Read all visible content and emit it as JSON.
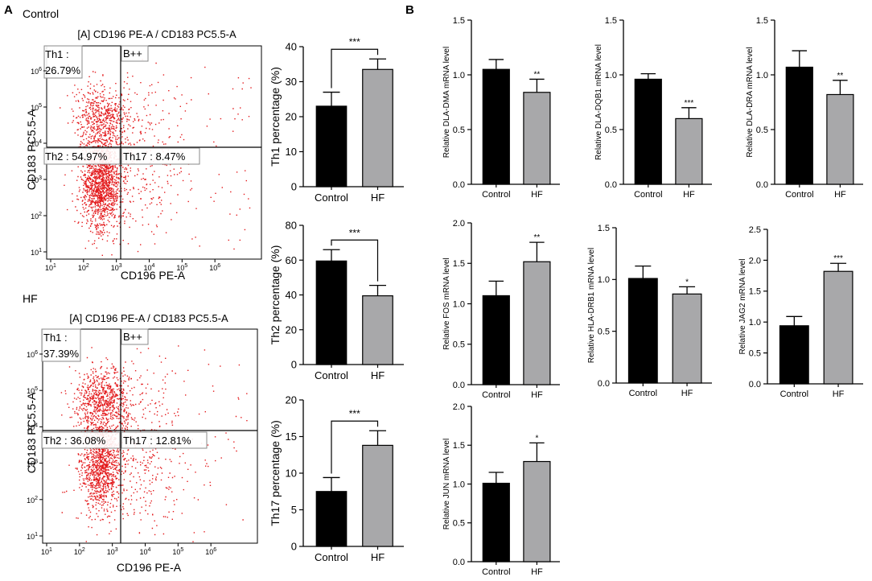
{
  "panels": {
    "a_label": "A",
    "b_label": "B"
  },
  "flow": [
    {
      "group": "Control",
      "gate_title": "[A] CD196 PE-A / CD183 PC5.5-A",
      "y_label": "CD183 PC5.5-A",
      "x_label": "CD196 PE-A",
      "q_th1_name": "Th1 :",
      "q_th1_value": "26.79%",
      "q_bpp": "B++",
      "q_th2": "Th2 : 54.97%",
      "q_th17": "Th17 : 8.47%",
      "axis_ticks": {
        "exponents": [
          "1",
          "2",
          "3",
          "4",
          "5",
          "6"
        ],
        "base": "10"
      }
    },
    {
      "group": "HF",
      "gate_title": "[A] CD196 PE-A / CD183 PC5.5-A",
      "y_label": "CD183 PC5.5-A",
      "x_label": "CD196 PE-A",
      "q_th1_name": "Th1 :",
      "q_th1_value": "37.39%",
      "q_bpp": "B++",
      "q_th2": "Th2 : 36.08%",
      "q_th17": "Th17 : 12.81%",
      "axis_ticks": {
        "exponents": [
          "1",
          "2",
          "3",
          "4",
          "5",
          "6"
        ],
        "base": "10"
      }
    }
  ],
  "colors": {
    "control_bar": "#000000",
    "hf_bar": "#a8a8aa",
    "dots": "#e31a1c",
    "axis": "#000000"
  },
  "chart_data": [
    {
      "id": "th1",
      "type": "bar",
      "categories": [
        "Control",
        "HF"
      ],
      "values": [
        23,
        33.5
      ],
      "errors": [
        4,
        3
      ],
      "ylabel": "Th1 percentage (%)",
      "ylim": [
        0,
        40
      ],
      "yticks": [
        0,
        10,
        20,
        30,
        40
      ],
      "tick_labels": [
        "0",
        "10",
        "20",
        "30",
        "40"
      ],
      "significance": [
        "",
        ""
      ],
      "bracket": "***"
    },
    {
      "id": "th2",
      "type": "bar",
      "categories": [
        "Control",
        "HF"
      ],
      "values": [
        59.5,
        39.5
      ],
      "errors": [
        6.5,
        6
      ],
      "ylabel": "Th2 percentage (%)",
      "ylim": [
        0,
        80
      ],
      "yticks": [
        0,
        20,
        40,
        60,
        80
      ],
      "tick_labels": [
        "0",
        "20",
        "40",
        "60",
        "80"
      ],
      "significance": [
        "",
        ""
      ],
      "bracket": "***"
    },
    {
      "id": "th17",
      "type": "bar",
      "categories": [
        "Control",
        "HF"
      ],
      "values": [
        7.5,
        13.8
      ],
      "errors": [
        1.9,
        2
      ],
      "ylabel": "Th17 percentage (%)",
      "ylim": [
        0,
        20
      ],
      "yticks": [
        0,
        5,
        10,
        15,
        20
      ],
      "tick_labels": [
        "0",
        "5",
        "10",
        "15",
        "20"
      ],
      "significance": [
        "",
        ""
      ],
      "bracket": "***"
    },
    {
      "id": "dma",
      "type": "bar",
      "categories": [
        "Control",
        "HF"
      ],
      "values": [
        1.05,
        0.84
      ],
      "errors": [
        0.09,
        0.12
      ],
      "ylabel": "Relative DLA-DMA mRNA level",
      "ylim": [
        0,
        1.5
      ],
      "yticks": [
        0,
        0.5,
        1,
        1.5
      ],
      "tick_labels": [
        "0.0",
        "0.5",
        "1.0",
        "1.5"
      ],
      "significance": [
        "",
        "**"
      ],
      "bracket": ""
    },
    {
      "id": "dqb1",
      "type": "bar",
      "categories": [
        "Control",
        "HF"
      ],
      "values": [
        0.96,
        0.6
      ],
      "errors": [
        0.05,
        0.1
      ],
      "ylabel": "Relative DLA-DQB1 mRNA level",
      "ylim": [
        0,
        1.5
      ],
      "yticks": [
        0,
        0.5,
        1,
        1.5
      ],
      "tick_labels": [
        "0.0",
        "0.5",
        "1.0",
        "1.5"
      ],
      "significance": [
        "",
        "***"
      ],
      "bracket": ""
    },
    {
      "id": "dra",
      "type": "bar",
      "categories": [
        "Control",
        "HF"
      ],
      "values": [
        1.07,
        0.82
      ],
      "errors": [
        0.15,
        0.13
      ],
      "ylabel": "Relative DLA-DRA mRNA level",
      "ylim": [
        0,
        1.5
      ],
      "yticks": [
        0,
        0.5,
        1,
        1.5
      ],
      "tick_labels": [
        "0.0",
        "0.5",
        "1.0",
        "1.5"
      ],
      "significance": [
        "",
        "**"
      ],
      "bracket": ""
    },
    {
      "id": "fos",
      "type": "bar",
      "categories": [
        "Control",
        "HF"
      ],
      "values": [
        1.1,
        1.52
      ],
      "errors": [
        0.18,
        0.24
      ],
      "ylabel": "Relative FOS mRNA level",
      "ylim": [
        0,
        2
      ],
      "yticks": [
        0,
        0.5,
        1,
        1.5,
        2
      ],
      "tick_labels": [
        "0.0",
        "0.5",
        "1.0",
        "1.5",
        "2.0"
      ],
      "significance": [
        "",
        "**"
      ],
      "bracket": ""
    },
    {
      "id": "drb1",
      "type": "bar",
      "categories": [
        "Control",
        "HF"
      ],
      "values": [
        1.01,
        0.86
      ],
      "errors": [
        0.12,
        0.07
      ],
      "ylabel": "Relative HLA-DRB1 mRNA level",
      "ylim": [
        0,
        1.5
      ],
      "yticks": [
        0,
        0.5,
        1,
        1.5
      ],
      "tick_labels": [
        "0.0",
        "0.5",
        "1.0",
        "1.5"
      ],
      "significance": [
        "",
        "*"
      ],
      "bracket": ""
    },
    {
      "id": "jag2",
      "type": "bar",
      "categories": [
        "Control",
        "HF"
      ],
      "values": [
        0.94,
        1.82
      ],
      "errors": [
        0.15,
        0.13
      ],
      "ylabel": "Relative JAG2 mRNA level",
      "ylim": [
        0,
        2.5
      ],
      "yticks": [
        0,
        0.5,
        1,
        1.5,
        2,
        2.5
      ],
      "tick_labels": [
        "0.0",
        "0.5",
        "1.0",
        "1.5",
        "2.0",
        "2.5"
      ],
      "significance": [
        "",
        "***"
      ],
      "bracket": ""
    },
    {
      "id": "jun",
      "type": "bar",
      "categories": [
        "Control",
        "HF"
      ],
      "values": [
        1.01,
        1.29
      ],
      "errors": [
        0.14,
        0.24
      ],
      "ylabel": "Relative JUN mRNA level",
      "ylim": [
        0,
        2
      ],
      "yticks": [
        0,
        0.5,
        1,
        1.5,
        2
      ],
      "tick_labels": [
        "0.0",
        "0.5",
        "1.0",
        "1.5",
        "2.0"
      ],
      "significance": [
        "",
        "*"
      ],
      "bracket": ""
    }
  ]
}
